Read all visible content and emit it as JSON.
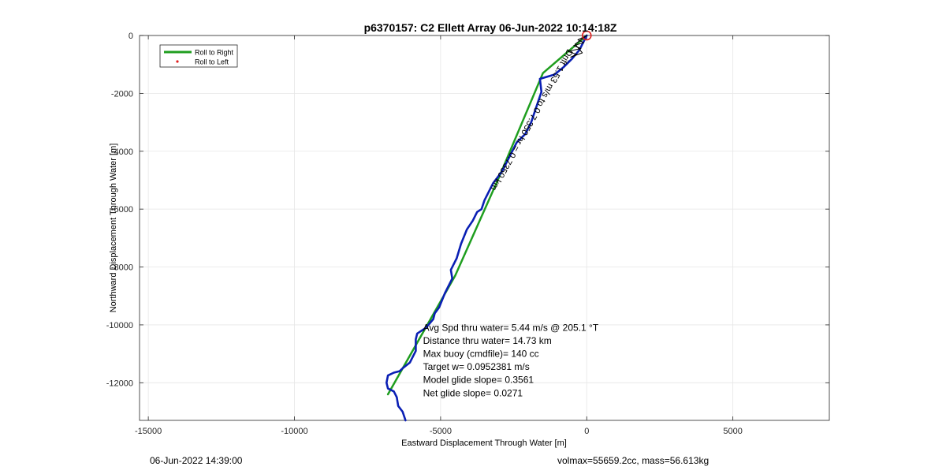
{
  "chart_data": {
    "type": "line",
    "title": "p6370157: C2 Ellett Array 06-Jun-2022 10:14:18Z",
    "xlabel": "Eastward Displacement Through Water [m]",
    "ylabel": "Northward Displacement Through Water [m]",
    "xlim": [
      -15300,
      8300
    ],
    "ylim": [
      -13300,
      0
    ],
    "xticks": [
      -15000,
      -10000,
      -5000,
      0,
      5000
    ],
    "xtick_labels": [
      "-15000",
      "-10000",
      "-5000",
      "0",
      "5000"
    ],
    "yticks": [
      0,
      -2000,
      -4000,
      -6000,
      -8000,
      -10000,
      -12000
    ],
    "ytick_labels": [
      "0",
      "-2000",
      "-4000",
      "-6000",
      "-8000",
      "-10000",
      "-12000"
    ],
    "grid": true,
    "legend": {
      "position": "top-left",
      "entries": [
        {
          "label": "Roll to Right",
          "color": "#1f9e1f",
          "marker": "line"
        },
        {
          "label": "Roll to Left",
          "color": "#e02020",
          "marker": "dot"
        }
      ]
    },
    "series": [
      {
        "name": "Roll to Right",
        "color": "#1f9e1f",
        "x": [
          0,
          -1500,
          -3000,
          -4500,
          -6800
        ],
        "y": [
          0,
          -1300,
          -4900,
          -8300,
          -12400
        ]
      },
      {
        "color": "#0a1fb4",
        "x": [
          0,
          -250,
          -500,
          -800,
          -1100,
          -1600,
          -1550,
          -1700,
          -1900,
          -2100,
          -2400,
          -2700,
          -2900,
          -3200,
          -3500,
          -3600,
          -3750,
          -3900,
          -4100,
          -4300,
          -4450,
          -4650,
          -4600,
          -4850,
          -5050,
          -5200,
          -5250,
          -5500,
          -5800,
          -5850,
          -5850,
          -6050,
          -6300,
          -6400,
          -6600,
          -6800,
          -6850,
          -6800,
          -6600,
          -6500,
          -6450,
          -6300,
          -6200
        ],
        "y": [
          0,
          -500,
          -800,
          -1100,
          -1350,
          -1500,
          -1950,
          -2400,
          -3000,
          -3400,
          -3700,
          -4300,
          -4700,
          -5100,
          -5700,
          -6000,
          -6100,
          -6400,
          -6700,
          -7200,
          -7700,
          -8100,
          -8400,
          -8900,
          -9400,
          -9600,
          -9800,
          -10100,
          -10300,
          -10500,
          -10900,
          -11300,
          -11500,
          -11600,
          -11650,
          -11750,
          -12000,
          -12200,
          -12300,
          -12500,
          -12800,
          -13000,
          -13300
        ]
      },
      {
        "color": "#000000",
        "x": [
          0,
          -300,
          -100,
          -450,
          -200,
          -650,
          -350,
          -550,
          -150,
          -400,
          0
        ],
        "y": [
          0,
          -150,
          -250,
          -350,
          -450,
          -550,
          -650,
          -750,
          -600,
          -300,
          0
        ]
      }
    ],
    "start_marker": {
      "x": 0,
      "y": 0,
      "color": "#e02020"
    },
    "rotated_annotation": {
      "text": "Drift 1.53 m/s to 0 7.350 hr = 0.7350 km",
      "x_start": -650,
      "y_start": -450,
      "x_end": -3250,
      "y_end": -5200
    },
    "stats_annotation": {
      "x": -5600,
      "y_top": -10200,
      "lines": [
        "Avg Spd thru water=  5.44 m/s @ 205.1 °T",
        "Distance thru water= 14.73 km",
        "Max buoy (cmdfile)= 140 cc",
        "Target w= 0.0952381 m/s",
        "Model glide slope= 0.3561",
        "Net glide slope= 0.0271"
      ]
    }
  },
  "footer": {
    "left": "06-Jun-2022 14:39:00",
    "right": "volmax=55659.2cc, mass=56.613kg"
  }
}
